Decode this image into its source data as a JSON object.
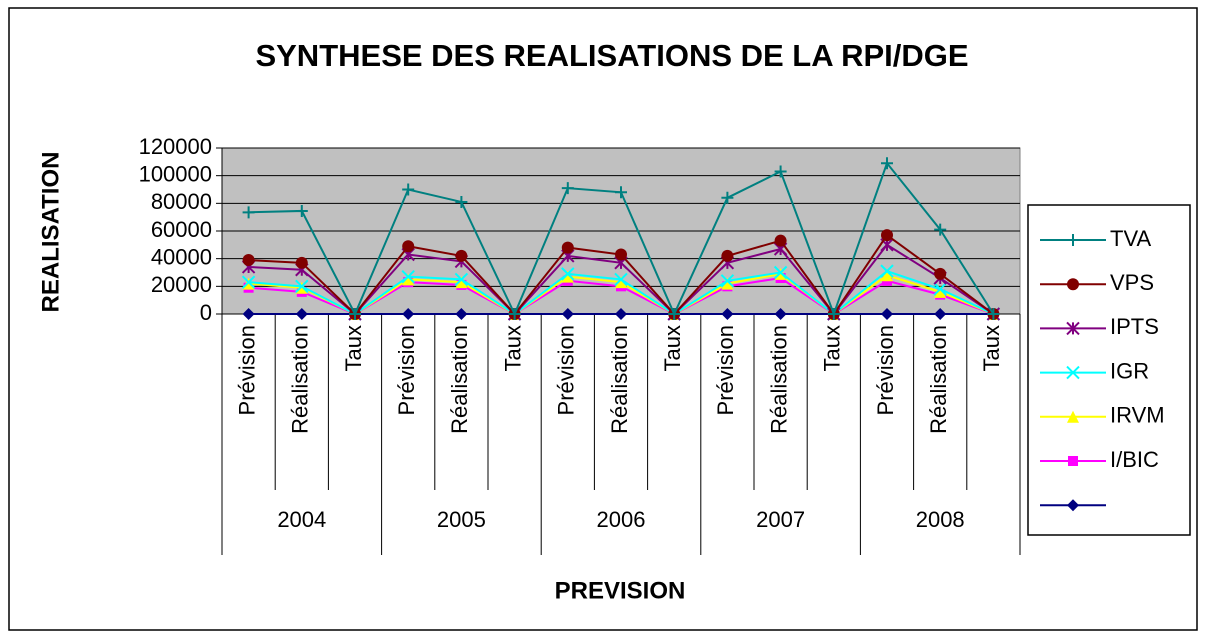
{
  "chart_data": {
    "type": "line",
    "title": "SYNTHESE DES REALISATIONS DE LA RPI/DGE",
    "y_label": "REALISATION",
    "x_label": "PREVISION",
    "categories": [
      "Prévision",
      "Réalisation",
      "Taux",
      "Prévision",
      "Réalisation",
      "Taux",
      "Prévision",
      "Réalisation",
      "Taux",
      "Prévision",
      "Réalisation",
      "Taux",
      "Prévision",
      "Réalisation",
      "Taux"
    ],
    "groups": [
      "2004",
      "2005",
      "2006",
      "2007",
      "2008"
    ],
    "ylim": [
      0,
      120000
    ],
    "yticks": [
      0,
      20000,
      40000,
      60000,
      80000,
      100000,
      120000
    ],
    "grid": true,
    "legend": "right",
    "series": [
      {
        "name": "TVA",
        "color": "#008080",
        "marker": "plus",
        "values": [
          73500,
          74500,
          0,
          90000,
          81000,
          0,
          91000,
          88000,
          0,
          84000,
          103000,
          0,
          109000,
          61000,
          0
        ]
      },
      {
        "name": "VPS",
        "color": "#800000",
        "marker": "circle",
        "values": [
          39000,
          37000,
          0,
          49000,
          42000,
          0,
          48000,
          43000,
          0,
          42000,
          53000,
          0,
          57000,
          29000,
          0
        ]
      },
      {
        "name": "IPTS",
        "color": "#800080",
        "marker": "star",
        "values": [
          34000,
          32000,
          0,
          43000,
          38000,
          0,
          42000,
          37000,
          0,
          37000,
          47000,
          0,
          50000,
          26000,
          0
        ]
      },
      {
        "name": "IGR",
        "color": "#00ffff",
        "marker": "x",
        "values": [
          23000,
          20000,
          0,
          27000,
          25000,
          0,
          29000,
          25000,
          0,
          24000,
          30000,
          0,
          31000,
          18000,
          0
        ]
      },
      {
        "name": "IRVM",
        "color": "#ffff00",
        "marker": "triangle",
        "values": [
          22000,
          19000,
          0,
          25000,
          23000,
          0,
          27000,
          23000,
          0,
          22000,
          29000,
          0,
          28000,
          16000,
          0
        ]
      },
      {
        "name": "I/BIC",
        "color": "#ff00ff",
        "marker": "square",
        "values": [
          19000,
          16000,
          0,
          23000,
          21000,
          0,
          24000,
          20000,
          0,
          20000,
          26000,
          0,
          24000,
          14000,
          0
        ]
      },
      {
        "name": null,
        "color": "#000080",
        "marker": "diamond",
        "values": [
          0,
          0,
          0,
          0,
          0,
          0,
          0,
          0,
          0,
          0,
          0,
          0,
          0,
          0,
          0
        ]
      }
    ]
  }
}
